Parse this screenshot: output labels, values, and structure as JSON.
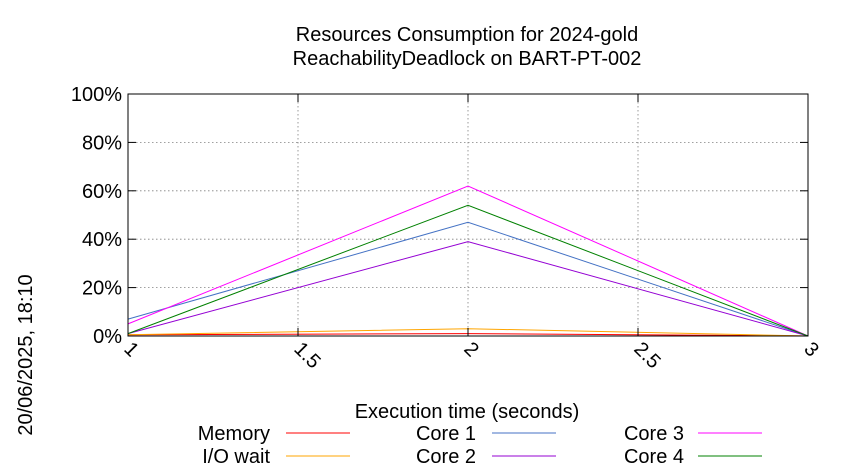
{
  "timestamp": "20/06/2025, 18:10",
  "chart_data": {
    "type": "line",
    "title": [
      "Resources Consumption for 2024-gold",
      "ReachabilityDeadlock on BART-PT-002"
    ],
    "xlabel": "Execution time (seconds)",
    "ylabel": "",
    "xlim": [
      1,
      3
    ],
    "ylim": [
      0,
      100
    ],
    "x_ticks": [
      1,
      1.5,
      2,
      2.5,
      3
    ],
    "x_tick_labels": [
      "1",
      "1.5",
      "2",
      "2.5",
      "3"
    ],
    "y_ticks": [
      0,
      20,
      40,
      60,
      80,
      100
    ],
    "y_tick_labels": [
      "0%",
      "20%",
      "40%",
      "60%",
      "80%",
      "100%"
    ],
    "grid": true,
    "legend_position": "bottom",
    "x": [
      1,
      2,
      3
    ],
    "series": [
      {
        "name": "Memory",
        "color": "#ff0000",
        "values": [
          0.5,
          1,
          0
        ]
      },
      {
        "name": "I/O wait",
        "color": "#ffa500",
        "values": [
          0.5,
          3,
          0
        ]
      },
      {
        "name": "Core 1",
        "color": "#4472c4",
        "values": [
          7,
          47,
          0
        ]
      },
      {
        "name": "Core 2",
        "color": "#9400d3",
        "values": [
          1,
          39,
          0
        ]
      },
      {
        "name": "Core 3",
        "color": "#ff00ff",
        "values": [
          5,
          62,
          0
        ]
      },
      {
        "name": "Core 4",
        "color": "#008000",
        "values": [
          1,
          54,
          0
        ]
      }
    ]
  }
}
